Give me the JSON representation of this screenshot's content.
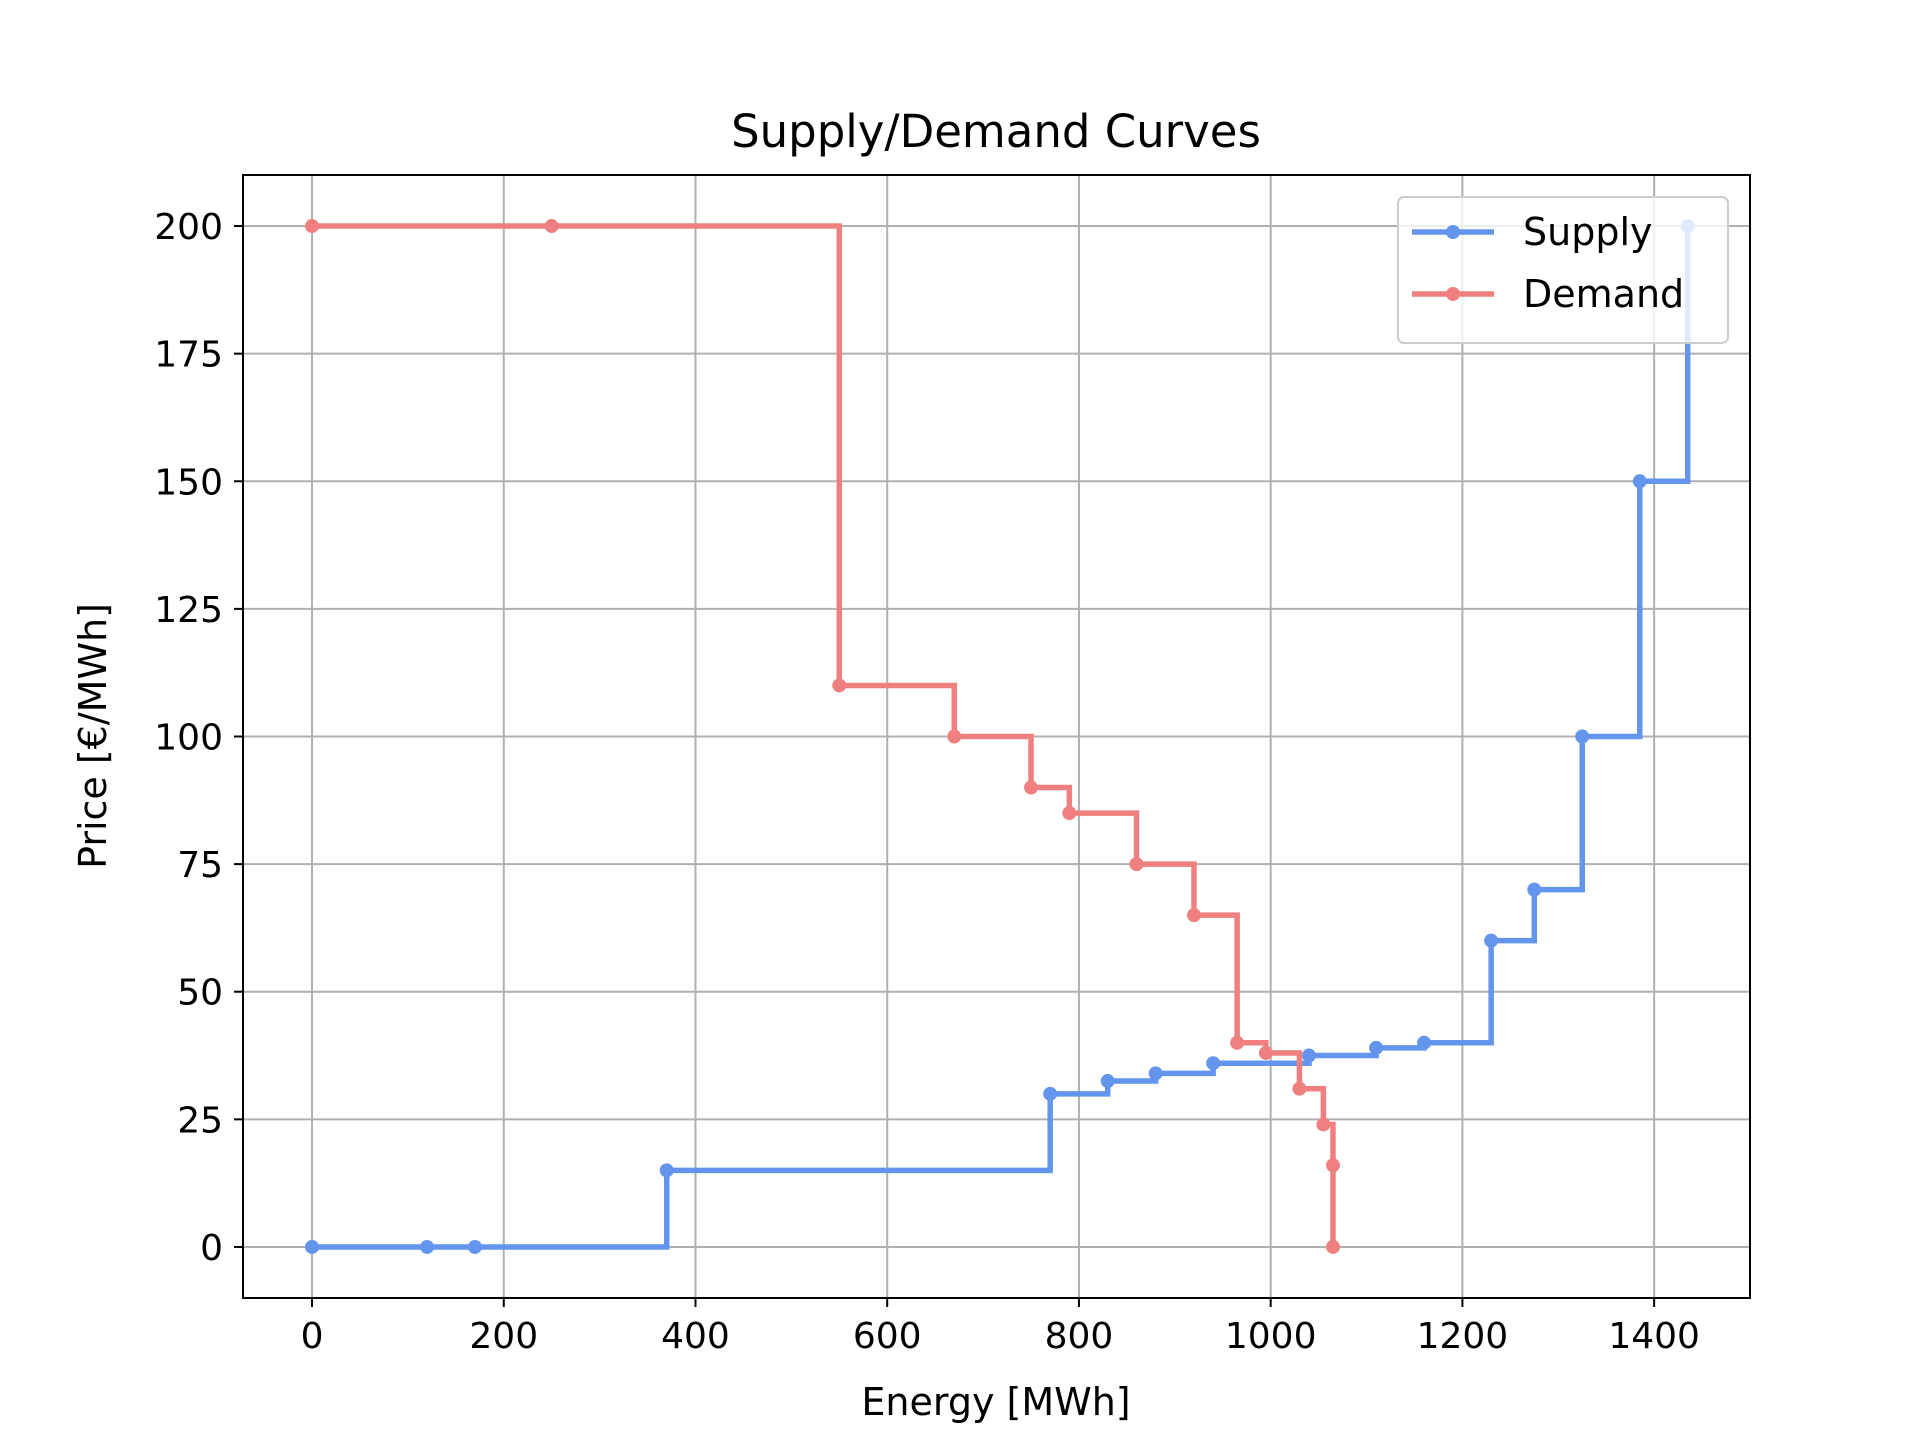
{
  "chart_data": {
    "type": "line",
    "title": "Supply/Demand Curves",
    "xlabel": "Energy [MWh]",
    "ylabel": "Price [€/MWh]",
    "xlim": [
      -72,
      1500
    ],
    "ylim": [
      -10,
      210
    ],
    "xticks": [
      0,
      200,
      400,
      600,
      800,
      1000,
      1200,
      1400
    ],
    "yticks": [
      0,
      25,
      50,
      75,
      100,
      125,
      150,
      175,
      200
    ],
    "grid": true,
    "legend_position": "top-right",
    "step": "post",
    "series": [
      {
        "name": "Supply",
        "color": "#6495ed",
        "x": [
          0,
          120,
          170,
          370,
          770,
          830,
          880,
          940,
          1040,
          1110,
          1160,
          1230,
          1275,
          1325,
          1385,
          1435
        ],
        "y": [
          0,
          0,
          0,
          15,
          30,
          32.5,
          34,
          36,
          37.5,
          39,
          40,
          60,
          70,
          100,
          150,
          200
        ]
      },
      {
        "name": "Demand",
        "color": "#f08080",
        "x": [
          0,
          250,
          550,
          670,
          750,
          790,
          860,
          920,
          965,
          995,
          1030,
          1055,
          1065,
          1065
        ],
        "y": [
          200,
          200,
          110,
          100,
          90,
          85,
          75,
          65,
          40,
          38,
          31,
          24,
          16,
          0
        ]
      }
    ]
  }
}
